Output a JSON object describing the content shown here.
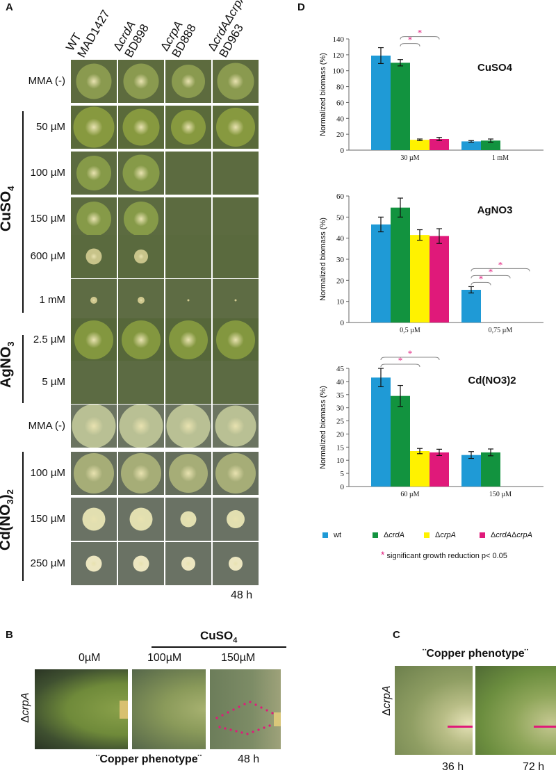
{
  "panel_labels": {
    "a": "A",
    "b": "B",
    "c": "C",
    "d": "D"
  },
  "panel_a": {
    "strains": [
      {
        "line1_plain": "WT",
        "line1_ital": "",
        "line2": "MAD1427"
      },
      {
        "line1_plain": "Δ",
        "line1_ital": "crdA",
        "line2": "BD898"
      },
      {
        "line1_plain": "Δ",
        "line1_ital": "crpA",
        "line2": "BD888"
      },
      {
        "line1_plain": "Δ",
        "line1_ital": "crdAΔcrpA",
        "line2": "BD963"
      }
    ],
    "rows": [
      {
        "label": "MMA (-)",
        "colonies": [
          0.78,
          0.78,
          0.72,
          0.8
        ],
        "bg": "#5d6b3e",
        "col": "#8a9a4f"
      },
      {
        "label": "50 µM",
        "colonies": [
          0.9,
          0.8,
          0.75,
          0.85
        ],
        "bg": "#5a6a3a",
        "col": "#87993f"
      },
      {
        "label": "100 µM",
        "colonies": [
          0.75,
          0.8,
          0.0,
          0.0
        ],
        "bg": "#5c6b40",
        "col": "#869a48"
      },
      {
        "label": "150 µM",
        "colonies": [
          0.75,
          0.75,
          0.0,
          0.0
        ],
        "bg": "#5c6b40",
        "col": "#869a48"
      },
      {
        "label": "600 µM",
        "colonies": [
          0.35,
          0.3,
          0.0,
          0.0
        ],
        "bg": "#5a6a3e",
        "col": "#c8c48a"
      },
      {
        "label": "1 mM",
        "colonies": [
          0.15,
          0.15,
          0.05,
          0.05
        ],
        "bg": "#5e6c44",
        "col": "#cfc88e"
      },
      {
        "label": "2.5 µM",
        "colonies": [
          0.85,
          0.85,
          0.85,
          0.85
        ],
        "bg": "#56673a",
        "col": "#83973f"
      },
      {
        "label": "5 µM",
        "colonies": [
          0.0,
          0.0,
          0.0,
          0.0
        ],
        "bg": "#5c6b43",
        "col": "#83973f"
      },
      {
        "label": "MMA (-)",
        "colonies": [
          0.95,
          0.95,
          0.95,
          0.9
        ],
        "bg": "#6b7461",
        "col": "#b9c094"
      },
      {
        "label": "100 µM",
        "colonies": [
          0.88,
          0.88,
          0.85,
          0.88
        ],
        "bg": "#656e5c",
        "col": "#a6ad77"
      },
      {
        "label": "150 µM",
        "colonies": [
          0.5,
          0.5,
          0.35,
          0.4
        ],
        "bg": "#6a7264",
        "col": "#e2dfb0"
      },
      {
        "label": "250 µM",
        "colonies": [
          0.35,
          0.35,
          0.3,
          0.3
        ],
        "bg": "#6a7264",
        "col": "#ece6c0"
      }
    ],
    "groups": [
      {
        "name": "CuSO",
        "sub": "4"
      },
      {
        "name": "AgNO",
        "sub": "3"
      },
      {
        "name": "Cd(NO",
        "sub": "3",
        "tail": ")",
        "sub2": "2"
      }
    ],
    "time": "48 h"
  },
  "panel_b": {
    "cuso4_label": "CuSO",
    "cuso4_sub": "4",
    "conc": [
      "0µM",
      "100µM",
      "150µM"
    ],
    "strain_plain": "Δ",
    "strain_ital": "crpA",
    "phenotype": "¨Copper  phenotype¨",
    "time": "48 h"
  },
  "panel_c": {
    "phenotype": "¨Copper phenotype¨",
    "strain_plain": "Δ",
    "strain_ital": "crpA",
    "times": [
      "36 h",
      "72 h"
    ]
  },
  "chart_data": [
    {
      "type": "bar",
      "title": "CuSO4",
      "ylabel": "Normalized biomass (%)",
      "categories": [
        "30 µM",
        "1 mM"
      ],
      "ylim": [
        0,
        140
      ],
      "yticks": [
        0,
        20,
        40,
        60,
        80,
        100,
        120,
        140
      ],
      "series": [
        {
          "name": "wt",
          "values": [
            119,
            11
          ],
          "errors": [
            10,
            1
          ]
        },
        {
          "name": "ΔcrdA",
          "values": [
            110,
            12
          ],
          "errors": [
            4,
            2
          ]
        },
        {
          "name": "ΔcrpA",
          "values": [
            13,
            0
          ],
          "errors": [
            1,
            0
          ]
        },
        {
          "name": "ΔcrdAΔcrpA",
          "values": [
            14,
            0
          ],
          "errors": [
            2,
            0
          ]
        }
      ]
    },
    {
      "type": "bar",
      "title": "AgNO3",
      "ylabel": "Normalized biomass (%)",
      "categories": [
        "0,5 µM",
        "0,75 µM"
      ],
      "ylim": [
        0,
        60
      ],
      "yticks": [
        0,
        10,
        20,
        30,
        40,
        50,
        60
      ],
      "series": [
        {
          "name": "wt",
          "values": [
            46.5,
            15.5
          ],
          "errors": [
            3.5,
            1.5
          ]
        },
        {
          "name": "ΔcrdA",
          "values": [
            54.5,
            0
          ],
          "errors": [
            4.5,
            0
          ]
        },
        {
          "name": "ΔcrpA",
          "values": [
            41.5,
            0
          ],
          "errors": [
            2.5,
            0
          ]
        },
        {
          "name": "ΔcrdAΔcrpA",
          "values": [
            41,
            0
          ],
          "errors": [
            3.5,
            0
          ]
        }
      ]
    },
    {
      "type": "bar",
      "title": "Cd(NO3)2",
      "ylabel": "Normalized biomass (%)",
      "categories": [
        "60 µM",
        "150 µM"
      ],
      "ylim": [
        0,
        45
      ],
      "yticks": [
        0,
        5,
        10,
        15,
        20,
        25,
        30,
        35,
        40,
        45
      ],
      "series": [
        {
          "name": "wt",
          "values": [
            41.5,
            12
          ],
          "errors": [
            3.5,
            1.3
          ]
        },
        {
          "name": "ΔcrdA",
          "values": [
            34.5,
            13
          ],
          "errors": [
            4,
            1.3
          ]
        },
        {
          "name": "ΔcrpA",
          "values": [
            13.5,
            0
          ],
          "errors": [
            1,
            0
          ]
        },
        {
          "name": "ΔcrdAΔcrpA",
          "values": [
            13,
            0
          ],
          "errors": [
            1.2,
            0
          ]
        }
      ]
    }
  ],
  "legend": {
    "items": [
      {
        "plain": "wt",
        "ital": "",
        "color": "#1f9ad6"
      },
      {
        "plain": "Δ",
        "ital": "crdA",
        "color": "#12933f"
      },
      {
        "plain": "Δ",
        "ital": "crpA",
        "color": "#fff200"
      },
      {
        "plain": "Δ",
        "ital": "crdA",
        "plain2": "Δ",
        "ital2": "crpA",
        "color": "#e0197a"
      }
    ],
    "sig_star": "*",
    "sig_text": "significant growth reduction p< 0.05"
  },
  "colors": {
    "wt": "#1f9ad6",
    "crdA": "#12933f",
    "crpA": "#fff200",
    "crdAcrpA": "#e0197a",
    "star": "#e0197a"
  }
}
